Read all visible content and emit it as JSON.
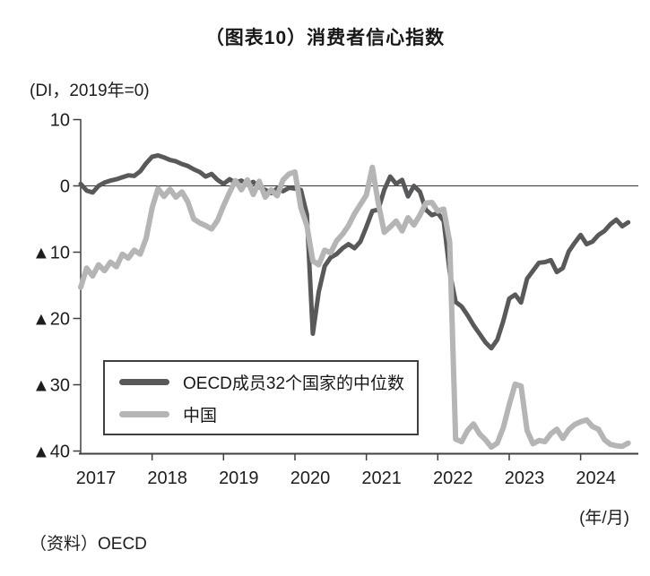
{
  "header": {
    "title": "（图表10）消费者信心指数"
  },
  "chart_data": {
    "type": "line",
    "title": "（图表10）消费者信心指数",
    "unit_label": "(DI，2019年=0)",
    "x_axis_unit": "(年/月)",
    "x_start": "2017-01",
    "x_end": "2024-09",
    "x_tick_labels": [
      "2017",
      "2018",
      "2019",
      "2020",
      "2021",
      "2022",
      "2023",
      "2024"
    ],
    "ylim": [
      -40,
      10
    ],
    "y_tick_values": [
      10,
      0,
      -10,
      -20,
      -30,
      -40
    ],
    "y_tick_labels": [
      "10",
      "0",
      "▲10",
      "▲20",
      "▲30",
      "▲40"
    ],
    "negative_prefix_glyph": "▲",
    "grid": "zero-line-only",
    "legend_position": "inside-lower-left-box",
    "axis_color": "#404040",
    "zero_line_color": "#333333",
    "tick_label_color": "#1d1d1f",
    "series": [
      {
        "name": "OECD成员32个国家的中位数",
        "color": "#58595b",
        "stroke_width": 5,
        "values": [
          0.3,
          -0.7,
          -1.0,
          0.0,
          0.5,
          0.8,
          1.0,
          1.3,
          1.6,
          1.5,
          2.2,
          3.4,
          4.4,
          4.6,
          4.3,
          3.9,
          3.7,
          3.3,
          3.0,
          2.5,
          2.1,
          1.4,
          1.8,
          0.9,
          0.3,
          1.0,
          0.5,
          0.8,
          0.2,
          0.6,
          -0.2,
          -0.6,
          -1.1,
          -0.4,
          -0.8,
          -0.3,
          -0.4,
          -0.6,
          -4.3,
          -22.3,
          -16.0,
          -12.1,
          -10.8,
          -10.3,
          -9.4,
          -8.8,
          -9.4,
          -8.4,
          -6.2,
          -3.8,
          -3.6,
          -0.6,
          1.4,
          0.3,
          0.9,
          -1.6,
          0.0,
          -0.9,
          -3.6,
          -4.4,
          -4.1,
          -5.3,
          -13.0,
          -17.5,
          -18.2,
          -19.5,
          -21.0,
          -22.3,
          -23.6,
          -24.5,
          -23.2,
          -20.4,
          -17.0,
          -16.4,
          -17.6,
          -14.0,
          -12.8,
          -11.6,
          -11.5,
          -11.2,
          -13.0,
          -12.4,
          -9.9,
          -8.6,
          -7.4,
          -8.8,
          -8.4,
          -7.4,
          -6.8,
          -5.8,
          -5.1,
          -6.1,
          -5.5
        ]
      },
      {
        "name": "中国",
        "color": "#b5b5b5",
        "stroke_width": 6,
        "values": [
          -15.3,
          -12.4,
          -13.6,
          -11.9,
          -12.8,
          -11.5,
          -12.2,
          -10.3,
          -10.9,
          -9.7,
          -10.3,
          -7.9,
          -3.3,
          -0.4,
          -1.6,
          -0.5,
          -1.7,
          -0.9,
          -2.4,
          -5.0,
          -5.6,
          -6.0,
          -6.5,
          -5.2,
          -3.0,
          -1.0,
          0.8,
          -0.6,
          0.9,
          -1.3,
          0.7,
          -1.7,
          -0.6,
          -1.5,
          0.9,
          1.8,
          2.1,
          -3.3,
          -6.0,
          -11.3,
          -11.9,
          -9.7,
          -10.1,
          -8.3,
          -7.3,
          -6.0,
          -4.2,
          -2.8,
          -1.4,
          2.8,
          -2.6,
          -7.0,
          -6.2,
          -5.3,
          -6.8,
          -4.8,
          -5.9,
          -4.4,
          -2.6,
          -2.5,
          -3.8,
          -3.5,
          -8.5,
          -38.2,
          -38.6,
          -36.9,
          -35.9,
          -37.4,
          -38.3,
          -39.4,
          -38.8,
          -36.5,
          -33.0,
          -29.9,
          -30.2,
          -36.9,
          -38.9,
          -38.4,
          -38.6,
          -37.4,
          -36.7,
          -38.1,
          -36.8,
          -36.0,
          -35.6,
          -35.3,
          -36.3,
          -36.7,
          -38.3,
          -39.0,
          -39.2,
          -39.3,
          -38.8
        ]
      }
    ]
  },
  "footer": {
    "source": "（资料）OECD"
  }
}
